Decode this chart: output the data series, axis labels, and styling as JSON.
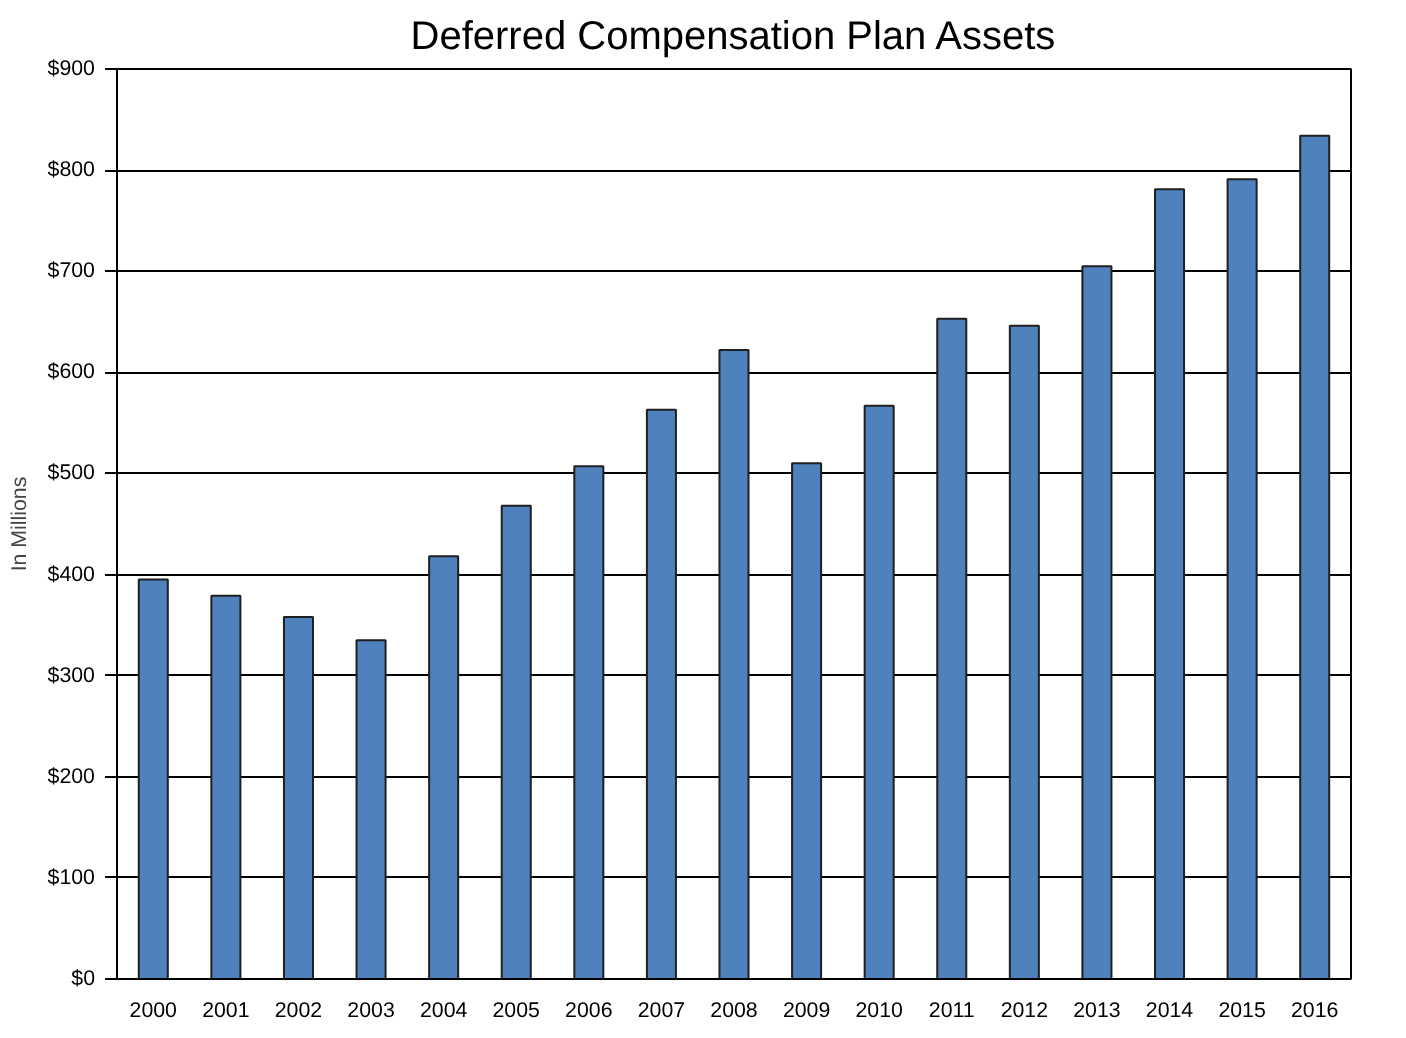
{
  "chart_data": {
    "type": "bar",
    "title": "Deferred Compensation Plan Assets",
    "ylabel": "In Millions",
    "categories": [
      "2000",
      "2001",
      "2002",
      "2003",
      "2004",
      "2005",
      "2006",
      "2007",
      "2008",
      "2009",
      "2010",
      "2011",
      "2012",
      "2013",
      "2014",
      "2015",
      "2016"
    ],
    "values": [
      395,
      379,
      358,
      335,
      418,
      468,
      507,
      563,
      622,
      510,
      567,
      653,
      646,
      705,
      781,
      791,
      834
    ],
    "color": "#4f81bd",
    "ylim": [
      0,
      900
    ],
    "yticks": [
      {
        "value": 0,
        "label": "$0"
      },
      {
        "value": 100,
        "label": "$100"
      },
      {
        "value": 200,
        "label": "$200"
      },
      {
        "value": 300,
        "label": "$300"
      },
      {
        "value": 400,
        "label": "$400"
      },
      {
        "value": 500,
        "label": "$500"
      },
      {
        "value": 600,
        "label": "$600"
      },
      {
        "value": 700,
        "label": "$700"
      },
      {
        "value": 800,
        "label": "$800"
      },
      {
        "value": 900,
        "label": "$900"
      }
    ],
    "grid": "y"
  }
}
